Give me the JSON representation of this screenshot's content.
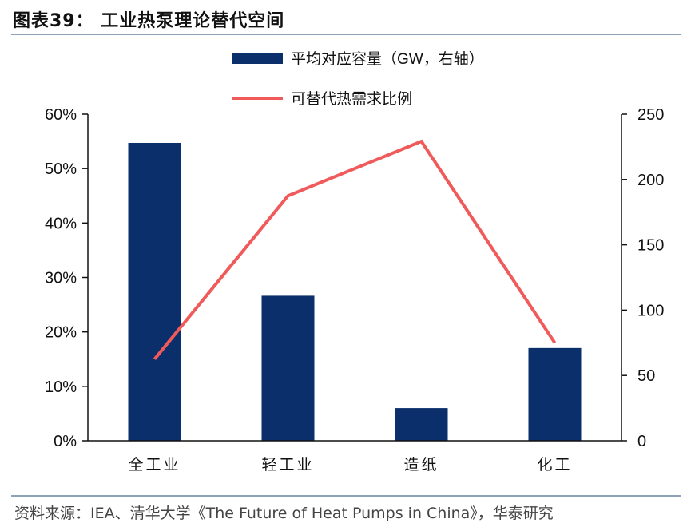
{
  "figure_title": "图表39：  工业热泵理论替代空间",
  "source": "资料来源：IEA、清华大学《The Future of Heat Pumps in China》，华泰研究",
  "colors": {
    "bar": "#0a2f6b",
    "line": "#f05a5a",
    "axis": "#111111",
    "rule": "#8ea1b7"
  },
  "chart_data": {
    "type": "bar",
    "categories": [
      "全工业",
      "轻工业",
      "造纸",
      "化工"
    ],
    "series": [
      {
        "name": "平均对应容量（GW，右轴）",
        "type": "bar",
        "axis": "right",
        "values": [
          228,
          111,
          25,
          71
        ]
      },
      {
        "name": "可替代热需求比例",
        "type": "line",
        "axis": "left",
        "values": [
          0.15,
          0.45,
          0.55,
          0.18
        ]
      }
    ],
    "y_left": {
      "range": [
        0,
        0.6
      ],
      "ticks": [
        "0%",
        "10%",
        "20%",
        "30%",
        "40%",
        "50%",
        "60%"
      ]
    },
    "y_right": {
      "range": [
        0,
        250
      ],
      "ticks": [
        "0",
        "50",
        "100",
        "150",
        "200",
        "250"
      ]
    },
    "legend_position": "top-center",
    "grid": false
  }
}
